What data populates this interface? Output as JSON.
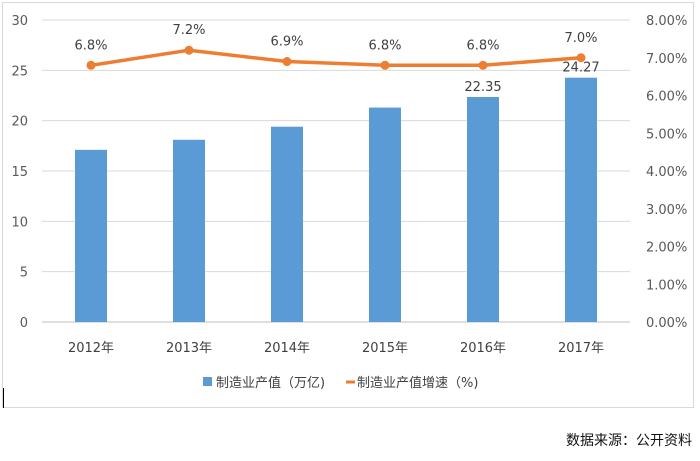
{
  "chart_data": {
    "type": "bar",
    "categories": [
      "2012年",
      "2013年",
      "2014年",
      "2015年",
      "2016年",
      "2017年"
    ],
    "series": [
      {
        "name": "制造业产值（万亿)",
        "kind": "bar",
        "axis": "left",
        "color": "#5b9bd5",
        "values": [
          17.1,
          18.1,
          19.4,
          21.3,
          22.35,
          24.27
        ],
        "data_labels": [
          "",
          "",
          "",
          "",
          "22.35",
          "24.27"
        ]
      },
      {
        "name": "制造业产值增速（%)",
        "kind": "line",
        "axis": "right",
        "color": "#ed7d31",
        "values": [
          0.068,
          0.072,
          0.069,
          0.068,
          0.068,
          0.07
        ],
        "data_labels": [
          "6.8%",
          "7.2%",
          "6.9%",
          "6.8%",
          "6.8%",
          "7.0%"
        ]
      }
    ],
    "y_left": {
      "lim": [
        0,
        30
      ],
      "ticks": [
        "0",
        "5",
        "10",
        "15",
        "20",
        "25",
        "30"
      ]
    },
    "y_right": {
      "lim": [
        0,
        0.08
      ],
      "ticks": [
        "0.00%",
        "1.00%",
        "2.00%",
        "3.00%",
        "4.00%",
        "5.00%",
        "6.00%",
        "7.00%",
        "8.00%"
      ]
    },
    "grid": true,
    "legend_position": "bottom"
  },
  "source_text": "数据来源：公开资料"
}
